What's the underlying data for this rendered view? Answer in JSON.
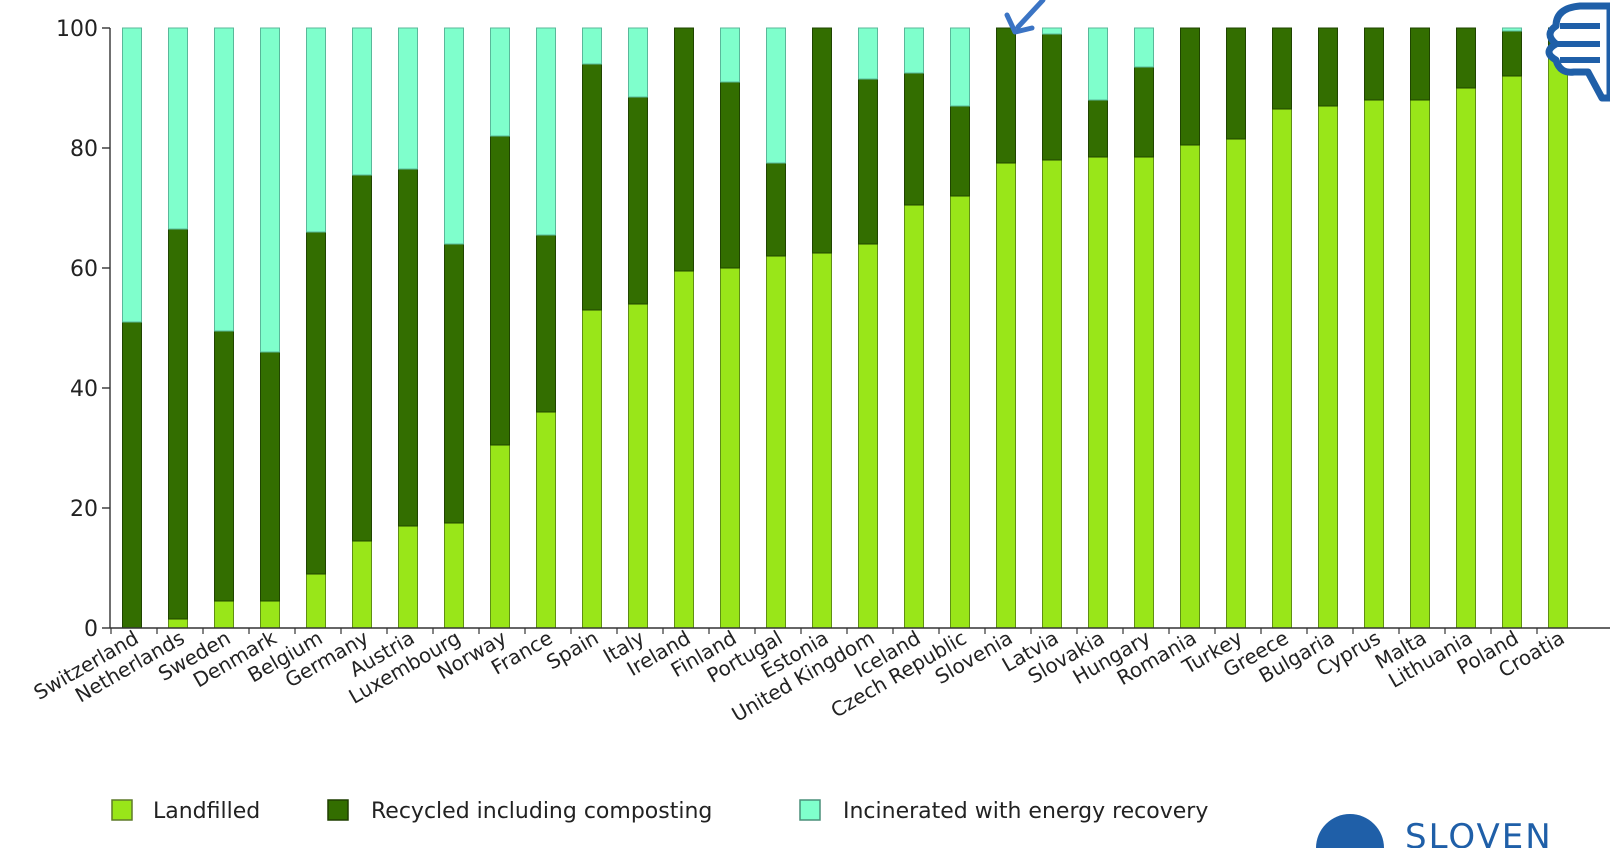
{
  "chart_data": {
    "type": "bar",
    "stacked": true,
    "categories": [
      "Switzerland",
      "Netherlands",
      "Sweden",
      "Denmark",
      "Belgium",
      "Germany",
      "Austria",
      "Luxembourg",
      "Norway",
      "France",
      "Spain",
      "Italy",
      "Ireland",
      "Finland",
      "Portugal",
      "Estonia",
      "United Kingdom",
      "Iceland",
      "Czech Republic",
      "Slovenia",
      "Latvia",
      "Slovakia",
      "Hungary",
      "Romania",
      "Turkey",
      "Greece",
      "Bulgaria",
      "Cyprus",
      "Malta",
      "Lithuania",
      "Poland",
      "Croatia"
    ],
    "series": [
      {
        "name": "Landfilled",
        "color": "#99e619",
        "values": [
          0,
          1.5,
          4.5,
          4.5,
          9,
          14.5,
          17,
          17.5,
          30.5,
          36,
          53,
          54,
          59.5,
          60,
          62,
          62.5,
          64,
          70.5,
          72,
          77.5,
          78,
          78.5,
          78.5,
          80.5,
          81.5,
          86.5,
          87,
          88,
          88,
          90,
          92,
          95
        ]
      },
      {
        "name": "Recycled including composting",
        "color": "#336e00",
        "values": [
          51,
          65,
          45,
          41.5,
          57,
          61,
          59.5,
          46.5,
          51.5,
          29.5,
          41,
          34.5,
          40.5,
          31,
          15.5,
          37.5,
          27.5,
          22,
          15,
          22.5,
          21,
          9.5,
          15,
          19.5,
          18.5,
          13.5,
          13,
          12,
          12,
          10,
          7.5,
          5
        ]
      },
      {
        "name": "Incinerated with energy recovery",
        "color": "#7fffcc",
        "values": [
          49,
          33.5,
          50.5,
          54,
          34,
          24.5,
          23.5,
          36,
          18,
          34.5,
          6,
          11.5,
          0,
          9,
          22.5,
          0,
          8.5,
          7.5,
          13,
          0,
          1,
          12,
          6.5,
          0,
          0,
          0,
          0,
          0,
          0,
          0,
          0.5,
          0
        ]
      }
    ],
    "ylim": [
      0,
      100
    ],
    "yticks": [
      "0",
      "20",
      "40",
      "60",
      "80",
      "100"
    ],
    "grid": false,
    "legend_position": "bottom"
  },
  "branding": {
    "logo_text": "SLOVEN"
  }
}
